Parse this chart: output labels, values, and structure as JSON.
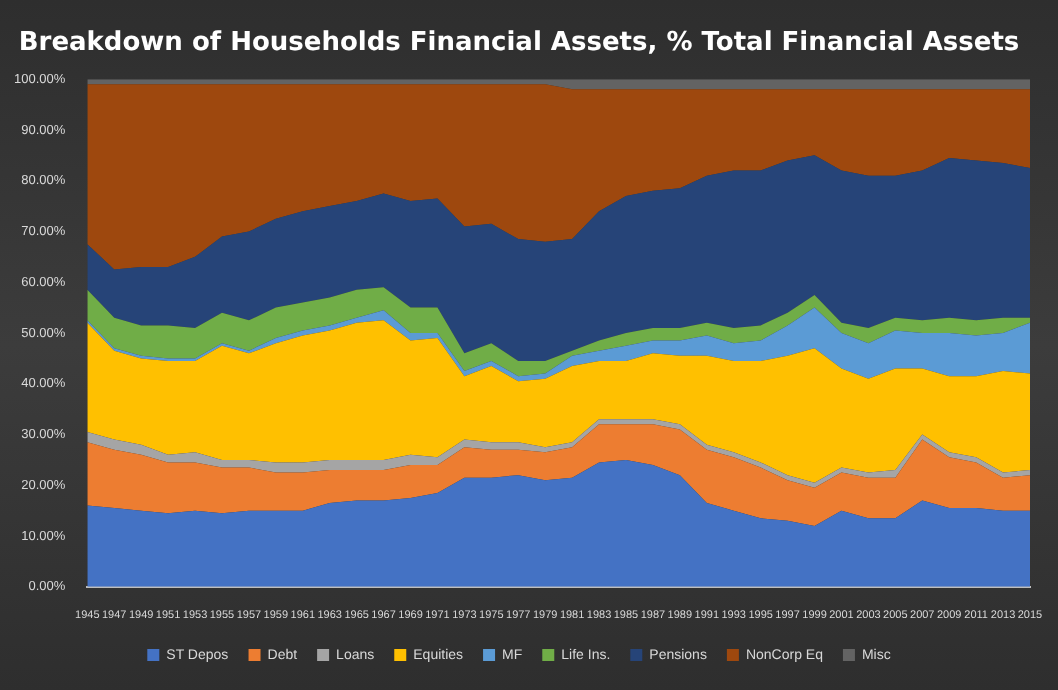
{
  "chart_data": {
    "type": "area",
    "title": "Breakdown of Households Financial Assets, % Total Financial Assets",
    "stacked": true,
    "legend": "bottom",
    "grid": false,
    "x": [
      1945,
      1947,
      1949,
      1951,
      1953,
      1955,
      1957,
      1959,
      1961,
      1963,
      1965,
      1967,
      1969,
      1971,
      1973,
      1975,
      1977,
      1979,
      1981,
      1983,
      1985,
      1987,
      1989,
      1991,
      1993,
      1995,
      1997,
      1999,
      2001,
      2003,
      2005,
      2007,
      2009,
      2011,
      2013,
      2015
    ],
    "xlim": [
      1945,
      2015
    ],
    "xticks": [
      1945,
      1947,
      1949,
      1951,
      1953,
      1955,
      1957,
      1959,
      1961,
      1963,
      1965,
      1967,
      1969,
      1971,
      1973,
      1975,
      1977,
      1979,
      1981,
      1983,
      1985,
      1987,
      1989,
      1991,
      1993,
      1995,
      1997,
      1999,
      2001,
      2003,
      2005,
      2007,
      2009,
      2011,
      2013,
      2015
    ],
    "ylim": [
      0,
      100
    ],
    "yticks": [
      {
        "value": 0,
        "label": "0.00%"
      },
      {
        "value": 10,
        "label": "10.00%"
      },
      {
        "value": 20,
        "label": "20.00%"
      },
      {
        "value": 30,
        "label": "30.00%"
      },
      {
        "value": 40,
        "label": "40.00%"
      },
      {
        "value": 50,
        "label": "50.00%"
      },
      {
        "value": 60,
        "label": "60.00%"
      },
      {
        "value": 70,
        "label": "70.00%"
      },
      {
        "value": 80,
        "label": "80.00%"
      },
      {
        "value": 90,
        "label": "90.00%"
      },
      {
        "value": 100,
        "label": "100.00%"
      }
    ],
    "series": [
      {
        "name": "ST Depos",
        "color": "#4472c4",
        "values": [
          16,
          15.5,
          15,
          14.5,
          15,
          14.5,
          15,
          15,
          15,
          16.5,
          17,
          17,
          17.5,
          18.5,
          21.5,
          21.5,
          22,
          21,
          21.5,
          24.5,
          25,
          24,
          22,
          16.5,
          15,
          13.5,
          13,
          12,
          15,
          13.5,
          13.5,
          17,
          15.5,
          15.5,
          15,
          15
        ]
      },
      {
        "name": "Debt",
        "color": "#ed7d31",
        "values": [
          12.5,
          11.5,
          11,
          10,
          9.5,
          9,
          8.5,
          7.5,
          7.5,
          6.5,
          6,
          6,
          6.5,
          5.5,
          6,
          5.5,
          5,
          5.5,
          6,
          7.5,
          7,
          8,
          9,
          10.5,
          10.5,
          10,
          8,
          7.5,
          7.5,
          8,
          8,
          12,
          10,
          9,
          6.5,
          7
        ]
      },
      {
        "name": "Loans",
        "color": "#a5a5a5",
        "values": [
          2,
          2,
          2,
          1.5,
          2,
          1.5,
          1.5,
          2,
          2,
          2,
          2,
          2,
          2,
          1.5,
          1.5,
          1.5,
          1.5,
          1,
          1,
          1,
          1,
          1,
          1,
          1,
          1,
          1,
          1,
          1,
          1,
          1,
          1.5,
          1,
          1,
          1,
          1,
          1
        ]
      },
      {
        "name": "Equities",
        "color": "#ffc000",
        "values": [
          21.5,
          17.5,
          17,
          18.5,
          18,
          22.5,
          21,
          23.5,
          25,
          25.5,
          27,
          27.5,
          22.5,
          23.5,
          12.5,
          15,
          12,
          13.5,
          15,
          11.5,
          11.5,
          13,
          13.5,
          17.5,
          18,
          20,
          23.5,
          26.5,
          19.5,
          18.5,
          20,
          13,
          15,
          16,
          20,
          19
        ]
      },
      {
        "name": "MF",
        "color": "#5b9bd5",
        "values": [
          0.5,
          0.5,
          0.5,
          0.5,
          0.5,
          0.5,
          0.5,
          1,
          1,
          1,
          1,
          2,
          1.5,
          1,
          1,
          1,
          1,
          1,
          2,
          2,
          3,
          2.5,
          3,
          4,
          3.5,
          4,
          6,
          8,
          7,
          7,
          7.5,
          7,
          8.5,
          8,
          7.5,
          10
        ]
      },
      {
        "name": "Life Ins.",
        "color": "#70ad47",
        "values": [
          6,
          6,
          6,
          6.5,
          6,
          6,
          6,
          6,
          5.5,
          5.5,
          5.5,
          4.5,
          5,
          5,
          3.5,
          3.5,
          3,
          2.5,
          1,
          2,
          2.5,
          2.5,
          2.5,
          2.5,
          3,
          3,
          2.5,
          2.5,
          2,
          3,
          2.5,
          2.5,
          3,
          3,
          3,
          1
        ]
      },
      {
        "name": "Pensions",
        "color": "#264478",
        "values": [
          9,
          9.5,
          11.5,
          11.5,
          14,
          15,
          17.5,
          17.5,
          18,
          18,
          17.5,
          18.5,
          21,
          21.5,
          25,
          23.5,
          24,
          23.5,
          22,
          25.5,
          27,
          27,
          27.5,
          29,
          31,
          30.5,
          30,
          27.5,
          30,
          30,
          28,
          29.5,
          31.5,
          31.5,
          30.5,
          29.5
        ]
      },
      {
        "name": "NonCorp Eq",
        "color": "#9e480e",
        "values": [
          31.5,
          36.5,
          36,
          36,
          34,
          30,
          29,
          26.5,
          25,
          24,
          23,
          21.5,
          23,
          22.5,
          28,
          27.5,
          30.5,
          31,
          29.5,
          24,
          21,
          20,
          19.5,
          17,
          16,
          16,
          14,
          13,
          16,
          17,
          17,
          16,
          13.5,
          14,
          14.5,
          15.5
        ]
      },
      {
        "name": "Misc",
        "color": "#636363",
        "values": [
          1,
          1,
          1,
          1,
          1,
          1,
          1,
          1,
          1,
          1,
          1,
          1,
          1,
          1,
          1,
          1,
          1,
          1,
          2,
          2,
          2,
          2,
          2,
          2,
          2,
          2,
          2,
          2,
          2,
          2,
          2,
          2,
          2,
          2,
          2,
          2
        ]
      }
    ]
  }
}
